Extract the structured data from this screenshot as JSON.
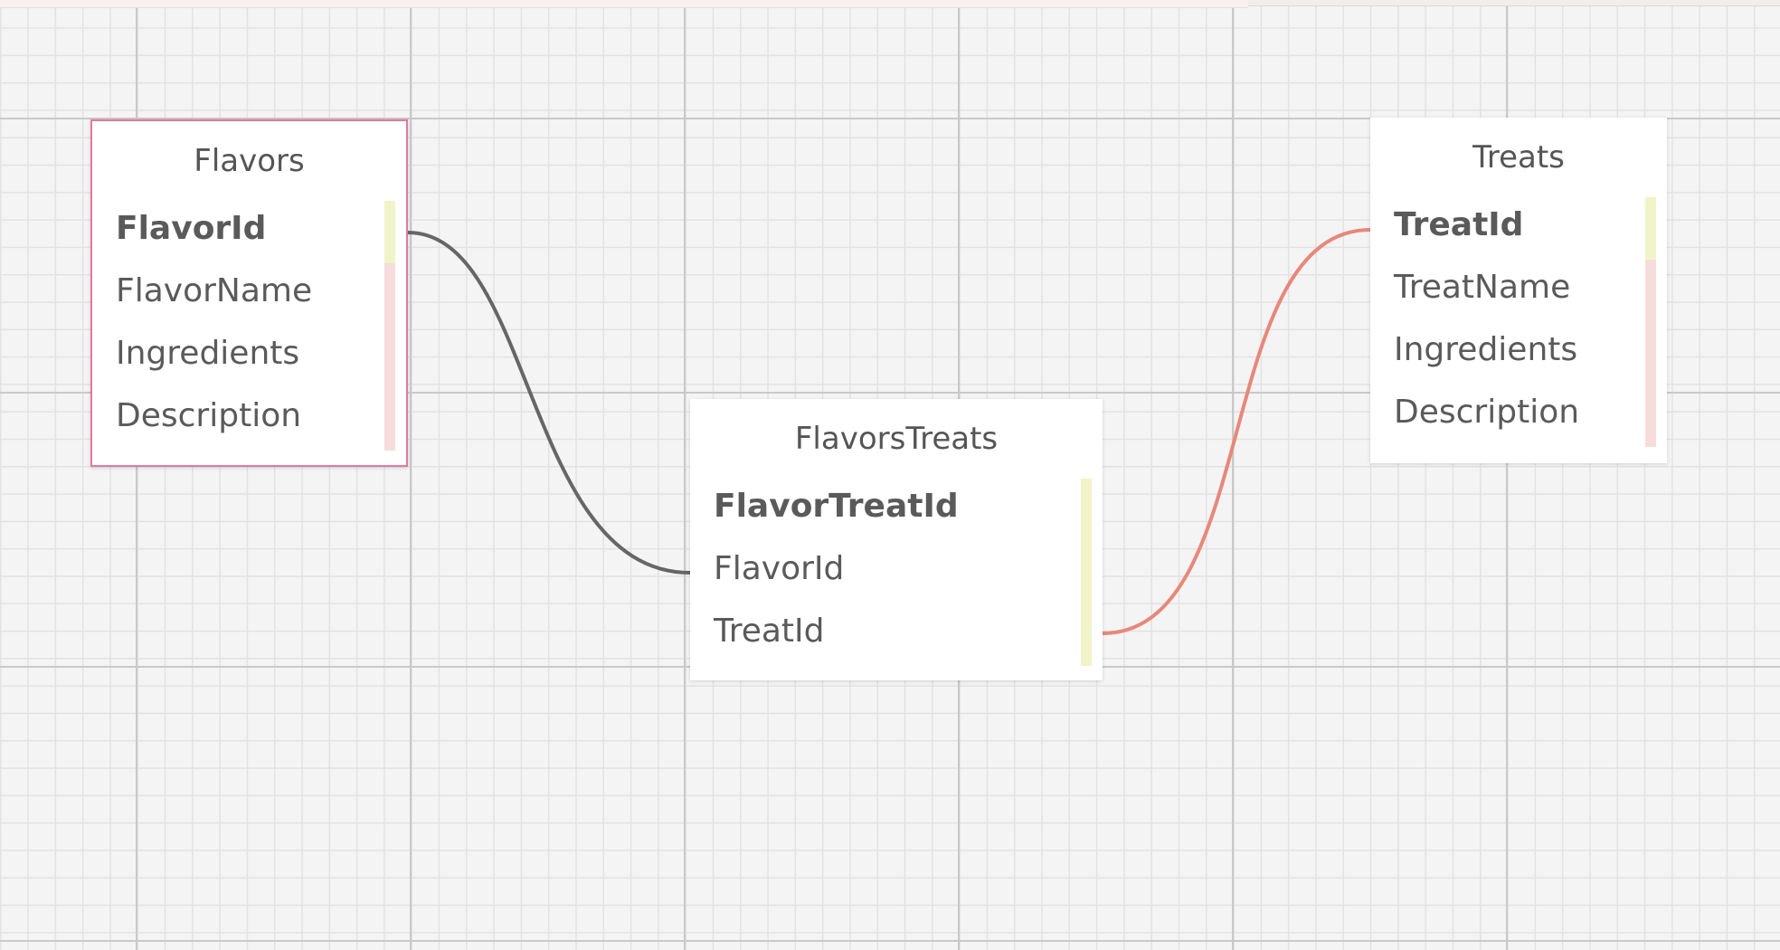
{
  "diagram": {
    "tables": [
      {
        "id": "flavors",
        "title": "Flavors",
        "selected": true,
        "fields": [
          {
            "name": "FlavorId",
            "key": "primary"
          },
          {
            "name": "FlavorName",
            "key": "none"
          },
          {
            "name": "Ingredients",
            "key": "none"
          },
          {
            "name": "Description",
            "key": "none"
          }
        ]
      },
      {
        "id": "flavors_treats",
        "title": "FlavorsTreats",
        "selected": false,
        "fields": [
          {
            "name": "FlavorTreatId",
            "key": "primary"
          },
          {
            "name": "FlavorId",
            "key": "foreign"
          },
          {
            "name": "TreatId",
            "key": "foreign"
          }
        ]
      },
      {
        "id": "treats",
        "title": "Treats",
        "selected": false,
        "fields": [
          {
            "name": "TreatId",
            "key": "primary"
          },
          {
            "name": "TreatName",
            "key": "none"
          },
          {
            "name": "Ingredients",
            "key": "none"
          },
          {
            "name": "Description",
            "key": "none"
          }
        ]
      }
    ],
    "relationships": [
      {
        "from": "flavors.FlavorId",
        "to": "flavors_treats.FlavorId",
        "color": "#666666"
      },
      {
        "from": "treats.TreatId",
        "to": "flavors_treats.TreatId",
        "color": "#e8877a"
      }
    ],
    "colors": {
      "canvas_background": "#f4f4f4",
      "selected_border": "#e07aa0",
      "primary_key_marker": "#f1f4c8",
      "field_marker": "#f7dcdc"
    }
  }
}
